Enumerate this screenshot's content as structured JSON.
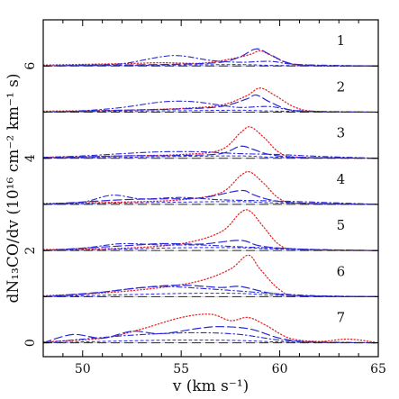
{
  "chart_data": {
    "type": "line",
    "xlabel": "v (km s⁻¹)",
    "ylabel": "dN₁₃CO/dv (10¹⁶ cm⁻² km⁻¹ s)",
    "xlim": [
      48,
      65
    ],
    "ylim": [
      -0.3,
      7.0
    ],
    "x_ticks": [
      "50",
      "55",
      "60",
      "65"
    ],
    "y_ticks": [
      "0",
      "2",
      "4",
      "6"
    ],
    "panels": [
      {
        "label": "1",
        "offset": 6,
        "dotted_red": [
          [
            48,
            0.02
          ],
          [
            52,
            0.05
          ],
          [
            54,
            0.07
          ],
          [
            56,
            0.06
          ],
          [
            57.5,
            0.15
          ],
          [
            58.5,
            0.25
          ],
          [
            59,
            0.33
          ],
          [
            59.5,
            0.24
          ],
          [
            60.5,
            0.05
          ],
          [
            62,
            0.0
          ],
          [
            65,
            0.0
          ]
        ],
        "long_dash_blue": [
          [
            48,
            0.0
          ],
          [
            52,
            0.02
          ],
          [
            55,
            0.04
          ],
          [
            57,
            0.08
          ],
          [
            58,
            0.2
          ],
          [
            58.8,
            0.37
          ],
          [
            59.5,
            0.25
          ],
          [
            60.5,
            0.06
          ],
          [
            62,
            0.01
          ],
          [
            65,
            0.0
          ]
        ],
        "dash_dot_blue": [
          [
            48,
            0.0
          ],
          [
            50,
            0.02
          ],
          [
            52,
            0.05
          ],
          [
            54,
            0.2
          ],
          [
            55,
            0.22
          ],
          [
            56.5,
            0.12
          ],
          [
            58,
            0.08
          ],
          [
            59.5,
            0.1
          ],
          [
            61,
            0.03
          ],
          [
            65,
            0.0
          ]
        ],
        "short_dash_blue": [
          [
            48,
            0.0
          ],
          [
            52,
            0.01
          ],
          [
            55,
            0.02
          ],
          [
            58,
            0.03
          ],
          [
            60,
            0.01
          ],
          [
            65,
            0.0
          ]
        ]
      },
      {
        "label": "2",
        "offset": 5,
        "dotted_red": [
          [
            48,
            0.02
          ],
          [
            52,
            0.04
          ],
          [
            55,
            0.08
          ],
          [
            57,
            0.15
          ],
          [
            58.3,
            0.35
          ],
          [
            59,
            0.52
          ],
          [
            59.8,
            0.35
          ],
          [
            60.8,
            0.1
          ],
          [
            62,
            0.01
          ],
          [
            65,
            0.0
          ]
        ],
        "long_dash_blue": [
          [
            48,
            0.0
          ],
          [
            52,
            0.04
          ],
          [
            55,
            0.07
          ],
          [
            57,
            0.12
          ],
          [
            58.3,
            0.28
          ],
          [
            58.8,
            0.37
          ],
          [
            59.5,
            0.22
          ],
          [
            60.5,
            0.05
          ],
          [
            62,
            0.01
          ],
          [
            65,
            0.0
          ]
        ],
        "dash_dot_blue": [
          [
            48,
            0.0
          ],
          [
            50,
            0.03
          ],
          [
            52,
            0.1
          ],
          [
            54,
            0.22
          ],
          [
            55.5,
            0.23
          ],
          [
            57,
            0.15
          ],
          [
            58,
            0.1
          ],
          [
            59.5,
            0.12
          ],
          [
            61,
            0.03
          ],
          [
            65,
            0.0
          ]
        ],
        "short_dash_blue": [
          [
            48,
            0.0
          ],
          [
            52,
            0.02
          ],
          [
            55,
            0.03
          ],
          [
            58,
            0.04
          ],
          [
            60,
            0.02
          ],
          [
            65,
            0.0
          ]
        ]
      },
      {
        "label": "3",
        "offset": 4,
        "dotted_red": [
          [
            48,
            0.02
          ],
          [
            52,
            0.05
          ],
          [
            55,
            0.08
          ],
          [
            57,
            0.18
          ],
          [
            58,
            0.55
          ],
          [
            58.5,
            0.68
          ],
          [
            59.2,
            0.45
          ],
          [
            60,
            0.12
          ],
          [
            61,
            0.02
          ],
          [
            65,
            0.0
          ]
        ],
        "long_dash_blue": [
          [
            48,
            0.0
          ],
          [
            52,
            0.05
          ],
          [
            55,
            0.06
          ],
          [
            57,
            0.1
          ],
          [
            58,
            0.26
          ],
          [
            58.6,
            0.2
          ],
          [
            59.5,
            0.08
          ],
          [
            61,
            0.02
          ],
          [
            65,
            0.0
          ]
        ],
        "dash_dot_blue": [
          [
            48,
            0.02
          ],
          [
            50,
            0.05
          ],
          [
            52,
            0.1
          ],
          [
            54,
            0.14
          ],
          [
            56,
            0.14
          ],
          [
            58,
            0.1
          ],
          [
            60,
            0.08
          ],
          [
            62,
            0.04
          ],
          [
            65,
            0.0
          ]
        ],
        "short_dash_blue": [
          [
            48,
            0.0
          ],
          [
            52,
            0.02
          ],
          [
            55,
            0.04
          ],
          [
            58,
            0.05
          ],
          [
            60,
            0.02
          ],
          [
            65,
            0.0
          ]
        ]
      },
      {
        "label": "4",
        "offset": 3,
        "dotted_red": [
          [
            48,
            0.02
          ],
          [
            52,
            0.05
          ],
          [
            55,
            0.1
          ],
          [
            57,
            0.25
          ],
          [
            58,
            0.62
          ],
          [
            58.5,
            0.7
          ],
          [
            59.2,
            0.45
          ],
          [
            60,
            0.12
          ],
          [
            61,
            0.02
          ],
          [
            65,
            0.0
          ]
        ],
        "long_dash_blue": [
          [
            48,
            0.0
          ],
          [
            52,
            0.1
          ],
          [
            54,
            0.12
          ],
          [
            56,
            0.14
          ],
          [
            58,
            0.3
          ],
          [
            58.6,
            0.22
          ],
          [
            59.5,
            0.1
          ],
          [
            61,
            0.03
          ],
          [
            65,
            0.0
          ]
        ],
        "dash_dot_blue": [
          [
            48,
            0.0
          ],
          [
            50,
            0.05
          ],
          [
            51.5,
            0.2
          ],
          [
            53,
            0.12
          ],
          [
            55,
            0.15
          ],
          [
            57,
            0.1
          ],
          [
            59,
            0.08
          ],
          [
            61,
            0.06
          ],
          [
            65,
            0.0
          ]
        ],
        "short_dash_blue": [
          [
            48,
            0.0
          ],
          [
            52,
            0.03
          ],
          [
            55,
            0.05
          ],
          [
            58,
            0.06
          ],
          [
            60,
            0.03
          ],
          [
            65,
            0.0
          ]
        ]
      },
      {
        "label": "5",
        "offset": 2,
        "dotted_red": [
          [
            48,
            0.02
          ],
          [
            52,
            0.05
          ],
          [
            55,
            0.15
          ],
          [
            57,
            0.4
          ],
          [
            58,
            0.82
          ],
          [
            58.5,
            0.85
          ],
          [
            59.2,
            0.5
          ],
          [
            60,
            0.12
          ],
          [
            61,
            0.02
          ],
          [
            65,
            0.0
          ]
        ],
        "long_dash_blue": [
          [
            48,
            0.0
          ],
          [
            52,
            0.1
          ],
          [
            54,
            0.15
          ],
          [
            56,
            0.14
          ],
          [
            58,
            0.22
          ],
          [
            59,
            0.1
          ],
          [
            61,
            0.03
          ],
          [
            65,
            0.0
          ]
        ],
        "dash_dot_blue": [
          [
            48,
            0.0
          ],
          [
            50,
            0.05
          ],
          [
            52,
            0.15
          ],
          [
            54,
            0.12
          ],
          [
            56,
            0.12
          ],
          [
            58,
            0.08
          ],
          [
            60,
            0.05
          ],
          [
            62,
            0.02
          ],
          [
            65,
            0.0
          ]
        ],
        "short_dash_blue": [
          [
            48,
            0.0
          ],
          [
            52,
            0.03
          ],
          [
            55,
            0.06
          ],
          [
            58,
            0.06
          ],
          [
            60,
            0.03
          ],
          [
            65,
            0.0
          ]
        ]
      },
      {
        "label": "6",
        "offset": 1,
        "dotted_red": [
          [
            48,
            0.02
          ],
          [
            51,
            0.08
          ],
          [
            54,
            0.2
          ],
          [
            56,
            0.35
          ],
          [
            57.5,
            0.6
          ],
          [
            58.4,
            0.9
          ],
          [
            59,
            0.6
          ],
          [
            60,
            0.15
          ],
          [
            61,
            0.02
          ],
          [
            65,
            0.0
          ]
        ],
        "long_dash_blue": [
          [
            48,
            0.0
          ],
          [
            51,
            0.1
          ],
          [
            53,
            0.2
          ],
          [
            55,
            0.25
          ],
          [
            57,
            0.2
          ],
          [
            58,
            0.22
          ],
          [
            59.5,
            0.08
          ],
          [
            61,
            0.02
          ],
          [
            65,
            0.0
          ]
        ],
        "dash_dot_blue": [
          [
            48,
            0.0
          ],
          [
            50,
            0.05
          ],
          [
            52,
            0.15
          ],
          [
            54,
            0.22
          ],
          [
            56,
            0.18
          ],
          [
            58,
            0.12
          ],
          [
            60,
            0.06
          ],
          [
            62,
            0.02
          ],
          [
            65,
            0.0
          ]
        ],
        "short_dash_blue": [
          [
            48,
            0.0
          ],
          [
            52,
            0.04
          ],
          [
            55,
            0.07
          ],
          [
            58,
            0.07
          ],
          [
            60,
            0.03
          ],
          [
            65,
            0.0
          ]
        ]
      },
      {
        "label": "7",
        "offset": 0,
        "dotted_red": [
          [
            48,
            0.02
          ],
          [
            51,
            0.1
          ],
          [
            53,
            0.3
          ],
          [
            55,
            0.55
          ],
          [
            56.5,
            0.62
          ],
          [
            57.5,
            0.48
          ],
          [
            58.4,
            0.55
          ],
          [
            59.3,
            0.38
          ],
          [
            60.5,
            0.1
          ],
          [
            62,
            0.03
          ],
          [
            63.5,
            0.08
          ],
          [
            65,
            0.0
          ]
        ],
        "long_dash_blue": [
          [
            48,
            0.0
          ],
          [
            49.5,
            0.18
          ],
          [
            51,
            0.1
          ],
          [
            52.5,
            0.25
          ],
          [
            54,
            0.2
          ],
          [
            56,
            0.32
          ],
          [
            57,
            0.35
          ],
          [
            58.5,
            0.3
          ],
          [
            60,
            0.1
          ],
          [
            61.5,
            0.02
          ],
          [
            65,
            0.0
          ]
        ],
        "dash_dot_blue": [
          [
            48,
            0.0
          ],
          [
            50,
            0.08
          ],
          [
            52,
            0.15
          ],
          [
            54,
            0.2
          ],
          [
            56,
            0.22
          ],
          [
            58,
            0.18
          ],
          [
            60,
            0.06
          ],
          [
            62,
            0.02
          ],
          [
            65,
            0.0
          ]
        ],
        "short_dash_blue": [
          [
            48,
            0.0
          ],
          [
            52,
            0.04
          ],
          [
            55,
            0.06
          ],
          [
            58,
            0.05
          ],
          [
            60,
            0.02
          ],
          [
            65,
            0.0
          ]
        ]
      }
    ],
    "colors": {
      "red": "#e8262d",
      "blue": "#2a2ad6",
      "baseline": "#333333"
    }
  }
}
